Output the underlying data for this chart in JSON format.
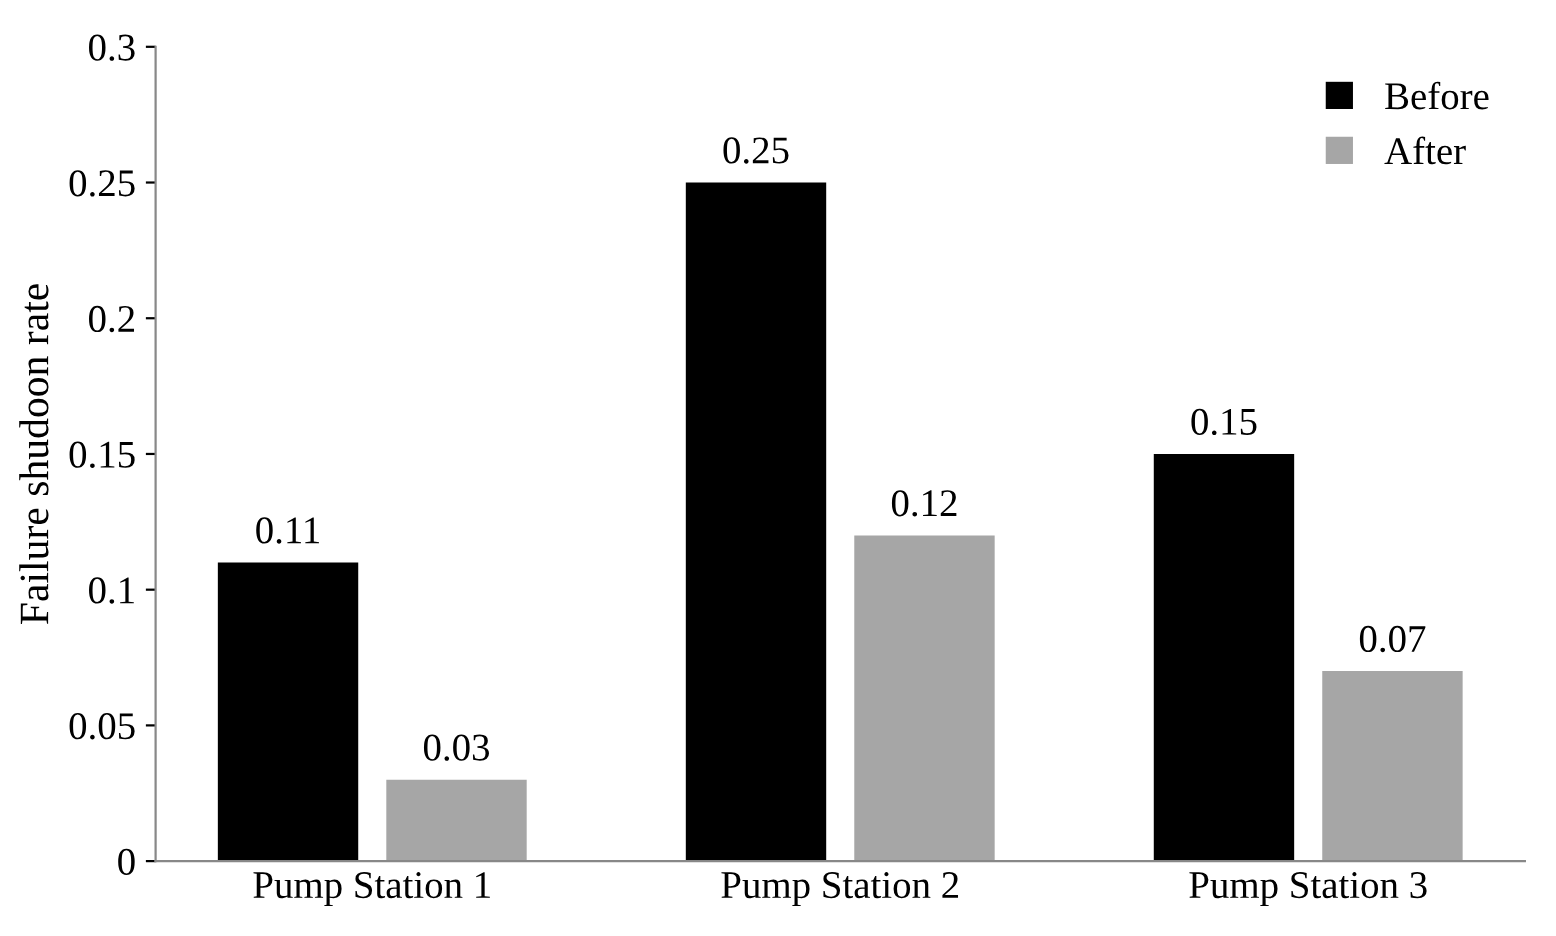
{
  "chart_data": {
    "type": "bar",
    "ylabel": "Failure shudoon rate",
    "categories": [
      "Pump Station 1",
      "Pump Station 2",
      "Pump Station 3"
    ],
    "series": [
      {
        "name": "Before",
        "color": "#000000",
        "values": [
          0.11,
          0.25,
          0.15
        ]
      },
      {
        "name": "After",
        "color": "#a6a6a6",
        "values": [
          0.03,
          0.12,
          0.07
        ]
      }
    ],
    "ylim": [
      0,
      0.3
    ],
    "yticks": [
      0,
      0.05,
      0.1,
      0.15,
      0.2,
      0.25,
      0.3
    ],
    "data_labels": true,
    "legend": "top right",
    "grid": false
  }
}
